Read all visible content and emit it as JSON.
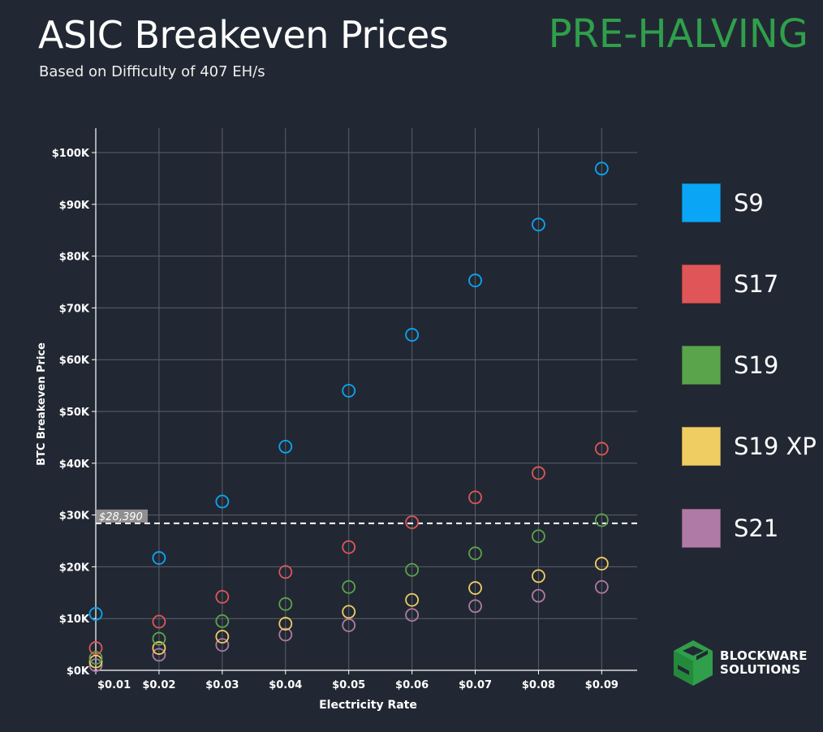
{
  "header": {
    "title": "ASIC Breakeven Prices",
    "subtitle": "Based on Difficulty of 407 EH/s",
    "badge": "PRE-HALVING"
  },
  "brand": {
    "line1": "BLOCKWARE",
    "line2": "SOLUTIONS"
  },
  "colors": {
    "background": "#222833",
    "grid": "#5a606a",
    "badge": "#2f9f4b",
    "S9": "#0aa6f5",
    "S17": "#e05658",
    "S19": "#5aa44c",
    "S19 XP": "#f0cd63",
    "S21": "#b07aa7"
  },
  "chart_data": {
    "type": "scatter",
    "title": "ASIC Breakeven Prices",
    "xlabel": "Electricity Rate",
    "ylabel": "BTC Breakeven Price",
    "x": [
      0.01,
      0.02,
      0.03,
      0.04,
      0.05,
      0.06,
      0.07,
      0.08,
      0.09
    ],
    "x_tick_labels": [
      "$0.01",
      "$0.02",
      "$0.03",
      "$0.04",
      "$0.05",
      "$0.06",
      "$0.07",
      "$0.08",
      "$0.09"
    ],
    "y_ticks": [
      0,
      10000,
      20000,
      30000,
      40000,
      50000,
      60000,
      70000,
      80000,
      90000,
      100000
    ],
    "y_tick_labels": [
      "$0K",
      "$10K",
      "$20K",
      "$30K",
      "$40K",
      "$50K",
      "$60K",
      "$70K",
      "$80K",
      "$90K",
      "$100K"
    ],
    "xlim": [
      0.01,
      0.0956
    ],
    "ylim": [
      0,
      104700
    ],
    "grid": true,
    "legend_position": "right",
    "reference_line": {
      "value": 28390,
      "label": "$28,390",
      "style": "dashed"
    },
    "series": [
      {
        "name": "S9",
        "values": [
          10900,
          21700,
          32600,
          43200,
          54000,
          64800,
          75300,
          86100,
          96900
        ]
      },
      {
        "name": "S17",
        "values": [
          4300,
          9400,
          14200,
          19000,
          23800,
          28600,
          33400,
          38100,
          42800
        ]
      },
      {
        "name": "S19",
        "values": [
          2400,
          6100,
          9500,
          12800,
          16100,
          19400,
          22600,
          25900,
          29000
        ]
      },
      {
        "name": "S19 XP",
        "values": [
          1700,
          4300,
          6500,
          9000,
          11300,
          13600,
          15900,
          18200,
          20600
        ]
      },
      {
        "name": "S21",
        "values": [
          1000,
          3000,
          4900,
          6900,
          8700,
          10700,
          12400,
          14400,
          16100
        ]
      }
    ]
  }
}
